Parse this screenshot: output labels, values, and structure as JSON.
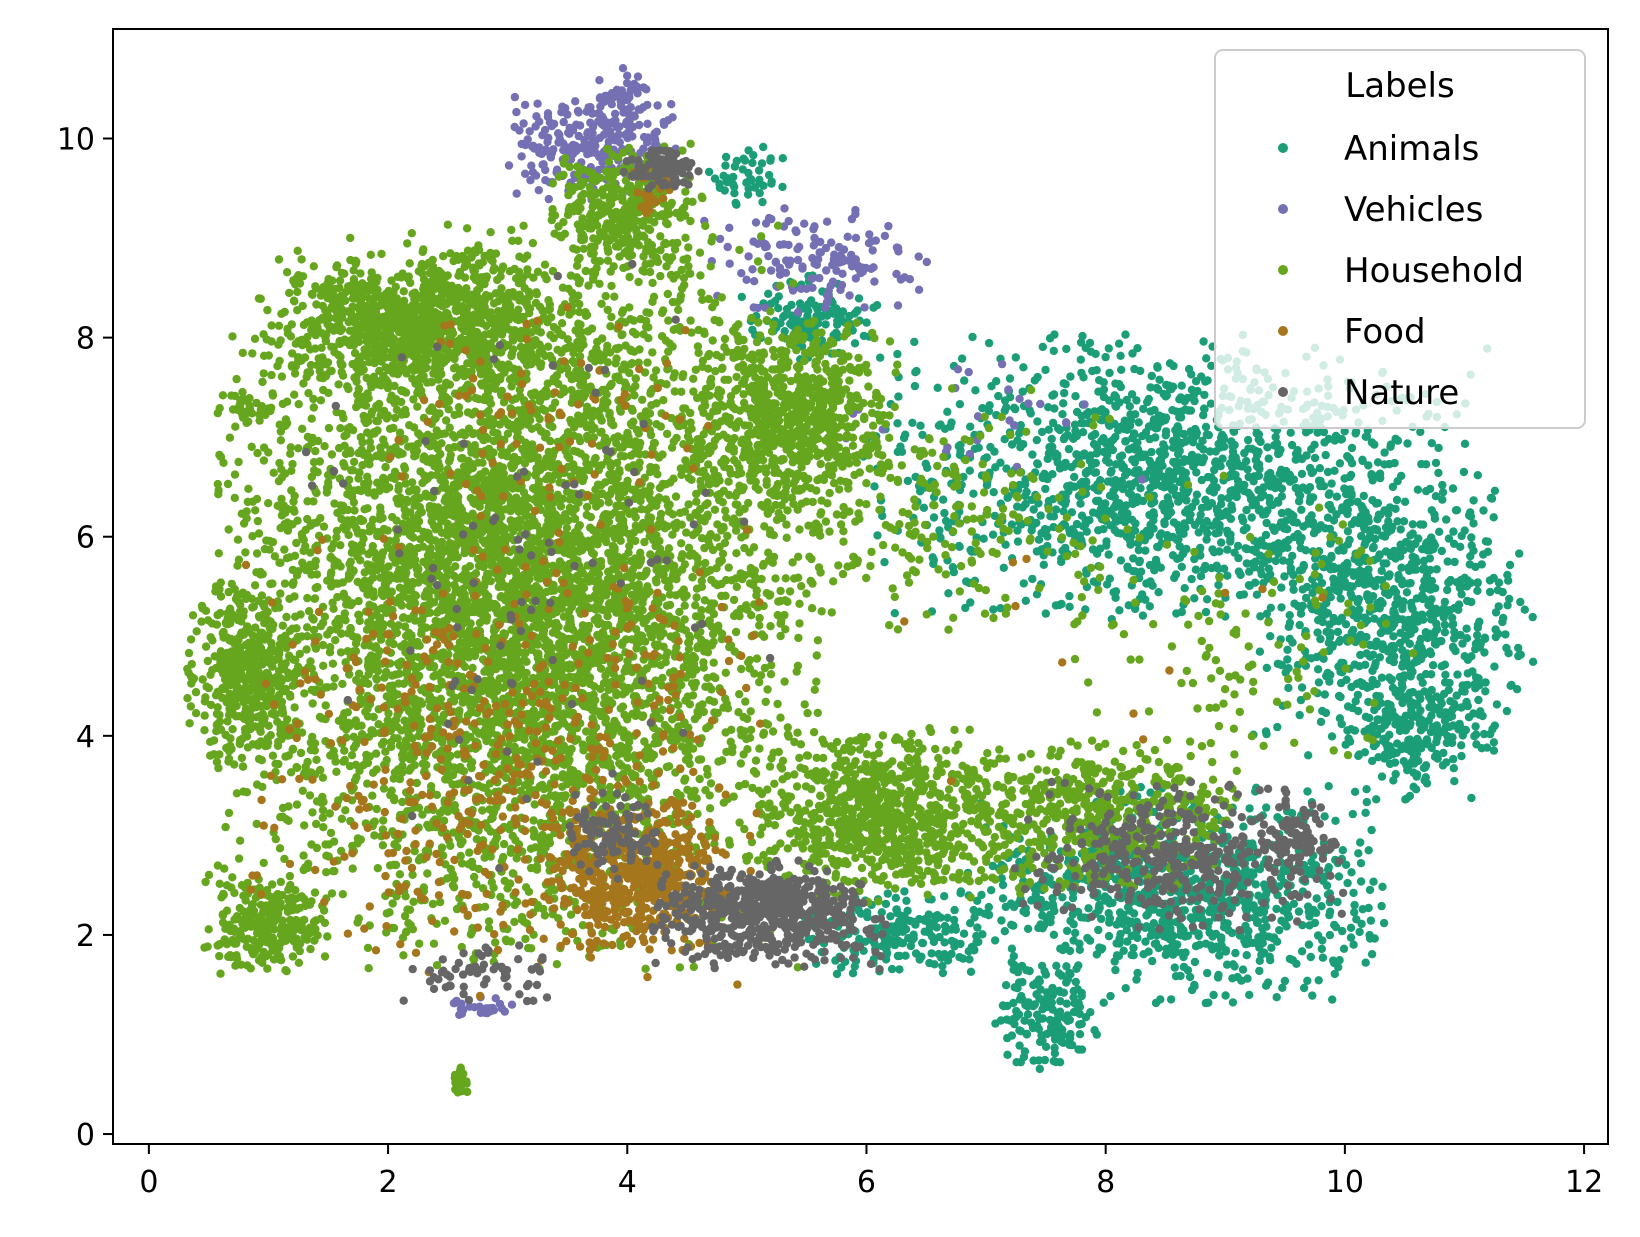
{
  "chart_data": {
    "type": "scatter",
    "title": "",
    "xlabel": "",
    "ylabel": "",
    "xlim": [
      -0.3,
      12.2
    ],
    "ylim": [
      -0.1,
      11.1
    ],
    "x_ticks": [
      0,
      2,
      4,
      6,
      8,
      10,
      12
    ],
    "y_ticks": [
      0,
      2,
      4,
      6,
      8,
      10
    ],
    "grid": false,
    "legend": {
      "title": "Labels",
      "position": "top-right",
      "entries": [
        " Animals",
        " Vehicles",
        " Household",
        " Food",
        "Nature"
      ]
    },
    "series": [
      {
        "name": " Animals",
        "color": "#1b9e77",
        "regions": [
          {
            "cx": 8.6,
            "cy": 6.6,
            "rx": 2.4,
            "ry": 1.3,
            "n": 1500
          },
          {
            "cx": 10.4,
            "cy": 5.2,
            "rx": 1.1,
            "ry": 1.3,
            "n": 700
          },
          {
            "cx": 8.6,
            "cy": 2.4,
            "rx": 1.6,
            "ry": 1.0,
            "n": 900
          },
          {
            "cx": 7.5,
            "cy": 1.2,
            "rx": 0.4,
            "ry": 0.5,
            "n": 150
          },
          {
            "cx": 10.6,
            "cy": 4.0,
            "rx": 0.6,
            "ry": 0.6,
            "n": 200
          },
          {
            "cx": 5.5,
            "cy": 8.2,
            "rx": 0.6,
            "ry": 0.4,
            "n": 120
          },
          {
            "cx": 6.3,
            "cy": 2.0,
            "rx": 0.8,
            "ry": 0.4,
            "n": 200
          },
          {
            "cx": 5.0,
            "cy": 9.6,
            "rx": 0.3,
            "ry": 0.3,
            "n": 50
          }
        ]
      },
      {
        "name": " Vehicles",
        "color": "#7570b3",
        "regions": [
          {
            "cx": 3.7,
            "cy": 9.9,
            "rx": 0.7,
            "ry": 0.5,
            "n": 250
          },
          {
            "cx": 3.95,
            "cy": 10.4,
            "rx": 0.2,
            "ry": 0.3,
            "n": 40
          },
          {
            "cx": 5.6,
            "cy": 8.8,
            "rx": 0.9,
            "ry": 0.5,
            "n": 140
          },
          {
            "cx": 7.0,
            "cy": 7.2,
            "rx": 1.4,
            "ry": 0.7,
            "n": 25
          },
          {
            "cx": 2.8,
            "cy": 1.3,
            "rx": 0.3,
            "ry": 0.1,
            "n": 25
          }
        ]
      },
      {
        "name": " Household",
        "color": "#66a61e",
        "regions": [
          {
            "cx": 3.1,
            "cy": 5.4,
            "rx": 2.3,
            "ry": 3.4,
            "n": 6000
          },
          {
            "cx": 2.3,
            "cy": 8.1,
            "rx": 1.2,
            "ry": 0.7,
            "n": 900
          },
          {
            "cx": 4.0,
            "cy": 9.3,
            "rx": 0.6,
            "ry": 0.6,
            "n": 350
          },
          {
            "cx": 5.4,
            "cy": 7.2,
            "rx": 0.8,
            "ry": 0.9,
            "n": 700
          },
          {
            "cx": 0.8,
            "cy": 4.6,
            "rx": 0.45,
            "ry": 0.9,
            "n": 400
          },
          {
            "cx": 1.0,
            "cy": 2.1,
            "rx": 0.5,
            "ry": 0.5,
            "n": 250
          },
          {
            "cx": 6.2,
            "cy": 3.2,
            "rx": 1.0,
            "ry": 0.8,
            "n": 800
          },
          {
            "cx": 8.0,
            "cy": 3.2,
            "rx": 1.0,
            "ry": 0.7,
            "n": 500
          },
          {
            "cx": 6.5,
            "cy": 6.2,
            "rx": 1.5,
            "ry": 1.2,
            "n": 220
          },
          {
            "cx": 9.0,
            "cy": 5.0,
            "rx": 1.5,
            "ry": 1.5,
            "n": 130
          },
          {
            "cx": 2.6,
            "cy": 0.55,
            "rx": 0.08,
            "ry": 0.15,
            "n": 25
          },
          {
            "cx": 0.85,
            "cy": 7.3,
            "rx": 0.2,
            "ry": 0.2,
            "n": 25
          }
        ]
      },
      {
        "name": " Food",
        "color": "#a6761d",
        "regions": [
          {
            "cx": 3.0,
            "cy": 3.8,
            "rx": 2.0,
            "ry": 2.2,
            "n": 500
          },
          {
            "cx": 4.1,
            "cy": 2.6,
            "rx": 0.7,
            "ry": 0.7,
            "n": 500
          },
          {
            "cx": 4.2,
            "cy": 9.5,
            "rx": 0.2,
            "ry": 0.3,
            "n": 40
          },
          {
            "cx": 3.3,
            "cy": 7.2,
            "rx": 1.4,
            "ry": 1.2,
            "n": 80
          },
          {
            "cx": 8.5,
            "cy": 5.0,
            "rx": 2.0,
            "ry": 1.5,
            "n": 12
          }
        ]
      },
      {
        "name": "Nature",
        "color": "#666666",
        "regions": [
          {
            "cx": 5.2,
            "cy": 2.2,
            "rx": 0.9,
            "ry": 0.5,
            "n": 550
          },
          {
            "cx": 3.9,
            "cy": 3.0,
            "rx": 0.4,
            "ry": 0.4,
            "n": 100
          },
          {
            "cx": 8.6,
            "cy": 2.8,
            "rx": 1.3,
            "ry": 0.7,
            "n": 400
          },
          {
            "cx": 4.3,
            "cy": 9.7,
            "rx": 0.3,
            "ry": 0.2,
            "n": 90
          },
          {
            "cx": 3.0,
            "cy": 5.5,
            "rx": 2.0,
            "ry": 3.0,
            "n": 90
          },
          {
            "cx": 2.7,
            "cy": 1.6,
            "rx": 0.7,
            "ry": 0.3,
            "n": 60
          },
          {
            "cx": 9.6,
            "cy": 3.0,
            "rx": 0.3,
            "ry": 0.3,
            "n": 60
          }
        ]
      }
    ]
  }
}
